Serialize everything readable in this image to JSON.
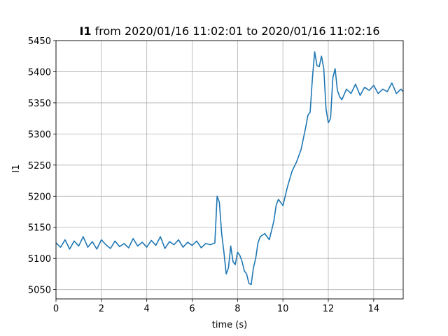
{
  "chart_data": {
    "type": "line",
    "title_bold": "I1",
    "title_rest": " from 2020/01/16 11:02:01 to 2020/01/16 11:02:16",
    "xlabel": "time (s)",
    "ylabel": "I1",
    "xlim": [
      0,
      15.3
    ],
    "ylim": [
      5035,
      5450
    ],
    "xticks": [
      0,
      2,
      4,
      6,
      8,
      10,
      12,
      14
    ],
    "yticks": [
      5050,
      5100,
      5150,
      5200,
      5250,
      5300,
      5350,
      5400,
      5450
    ],
    "grid": true,
    "line_color": "#1f77b4",
    "series": [
      {
        "x": [
          0,
          0.2,
          0.4,
          0.6,
          0.8,
          1.0,
          1.2,
          1.4,
          1.6,
          1.8,
          2.0,
          2.2,
          2.4,
          2.6,
          2.8,
          3.0,
          3.2,
          3.4,
          3.6,
          3.8,
          4.0,
          4.2,
          4.4,
          4.6,
          4.8,
          5.0,
          5.2,
          5.4,
          5.6,
          5.8,
          6.0,
          6.2,
          6.4,
          6.6,
          6.8,
          7.0,
          7.1,
          7.2,
          7.3,
          7.4,
          7.5,
          7.6,
          7.7,
          7.8,
          7.9,
          8.0,
          8.1,
          8.2,
          8.3,
          8.4,
          8.5,
          8.6,
          8.7,
          8.8,
          8.9,
          9.0,
          9.2,
          9.4,
          9.6,
          9.7,
          9.8,
          9.9,
          10.0,
          10.2,
          10.4,
          10.6,
          10.8,
          11.0,
          11.1,
          11.2,
          11.3,
          11.4,
          11.5,
          11.6,
          11.7,
          11.8,
          11.9,
          12.0,
          12.1,
          12.2,
          12.3,
          12.4,
          12.5,
          12.6,
          12.8,
          13.0,
          13.2,
          13.4,
          13.6,
          13.8,
          14.0,
          14.2,
          14.4,
          14.6,
          14.8,
          15.0,
          15.2,
          15.3
        ],
        "y": [
          5125,
          5118,
          5130,
          5115,
          5128,
          5120,
          5135,
          5118,
          5127,
          5115,
          5130,
          5122,
          5116,
          5128,
          5119,
          5124,
          5117,
          5132,
          5120,
          5126,
          5118,
          5129,
          5121,
          5135,
          5116,
          5127,
          5122,
          5130,
          5118,
          5126,
          5121,
          5128,
          5117,
          5124,
          5122,
          5125,
          5200,
          5190,
          5140,
          5110,
          5075,
          5085,
          5120,
          5095,
          5090,
          5110,
          5105,
          5095,
          5080,
          5075,
          5060,
          5058,
          5085,
          5100,
          5125,
          5135,
          5140,
          5130,
          5160,
          5185,
          5195,
          5190,
          5185,
          5215,
          5240,
          5255,
          5275,
          5310,
          5330,
          5335,
          5390,
          5432,
          5410,
          5408,
          5425,
          5405,
          5340,
          5318,
          5325,
          5390,
          5405,
          5370,
          5360,
          5355,
          5372,
          5365,
          5380,
          5362,
          5375,
          5370,
          5378,
          5365,
          5372,
          5368,
          5382,
          5365,
          5372,
          5368
        ]
      }
    ]
  }
}
